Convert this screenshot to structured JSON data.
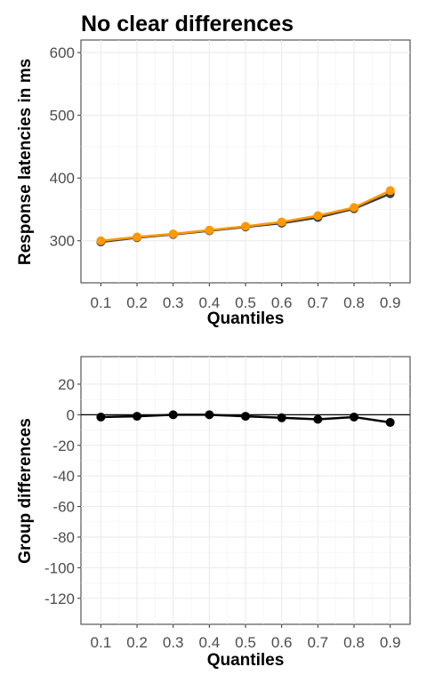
{
  "title": "No clear differences",
  "chart_data": [
    {
      "type": "line",
      "xlabel": "Quantiles",
      "ylabel": "Response latencies in ms",
      "x": [
        0.1,
        0.2,
        0.3,
        0.4,
        0.5,
        0.6,
        0.7,
        0.8,
        0.9
      ],
      "x_tick_labels": [
        "0.1",
        "0.2",
        "0.3",
        "0.4",
        "0.5",
        "0.6",
        "0.7",
        "0.8",
        "0.9"
      ],
      "xlim": [
        0.045,
        0.955
      ],
      "ylim": [
        233,
        620
      ],
      "y_ticks": [
        300,
        400,
        500,
        600
      ],
      "y_tick_labels": [
        "300",
        "400",
        "500",
        "600"
      ],
      "grid": true,
      "series": [
        {
          "color": "#404040",
          "values": [
            298,
            305,
            310,
            316,
            322,
            328,
            337,
            351,
            375
          ]
        },
        {
          "color": "#FF9900",
          "values": [
            300,
            306,
            311,
            317,
            323,
            330,
            340,
            353,
            380
          ]
        }
      ]
    },
    {
      "type": "line",
      "xlabel": "Quantiles",
      "ylabel": "Group differences",
      "x": [
        0.1,
        0.2,
        0.3,
        0.4,
        0.5,
        0.6,
        0.7,
        0.8,
        0.9
      ],
      "x_tick_labels": [
        "0.1",
        "0.2",
        "0.3",
        "0.4",
        "0.5",
        "0.6",
        "0.7",
        "0.8",
        "0.9"
      ],
      "xlim": [
        0.045,
        0.955
      ],
      "ylim": [
        -137,
        38
      ],
      "y_ticks": [
        20,
        0,
        -20,
        -40,
        -60,
        -80,
        -100,
        -120
      ],
      "y_tick_labels": [
        "20",
        "0",
        "-20",
        "-40",
        "-60",
        "-80",
        "-100",
        "-120"
      ],
      "hline": 0,
      "grid": true,
      "series": [
        {
          "color": "#000000",
          "values": [
            -1.5,
            -1,
            0,
            0,
            -1,
            -2,
            -3,
            -1.5,
            -5
          ]
        }
      ]
    }
  ]
}
